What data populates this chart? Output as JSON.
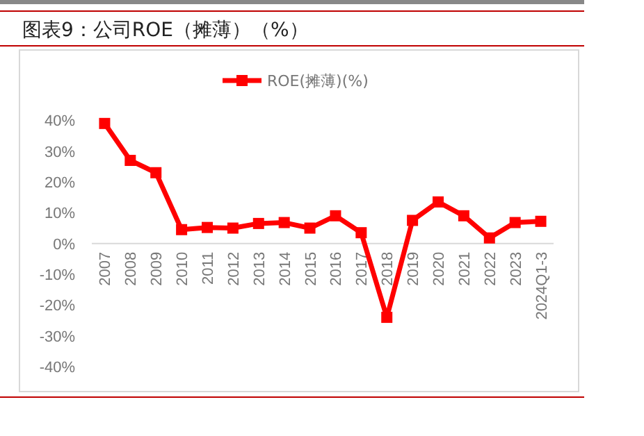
{
  "chart_data": {
    "type": "line",
    "title": "图表9：公司ROE（摊薄）（%）",
    "categories": [
      "2007",
      "2008",
      "2009",
      "2010",
      "2011",
      "2012",
      "2013",
      "2014",
      "2015",
      "2016",
      "2017",
      "2018",
      "2019",
      "2020",
      "2021",
      "2022",
      "2023",
      "2024Q1-3"
    ],
    "series": [
      {
        "name": "ROE(摊薄)(%)",
        "color": "#ff0000",
        "values": [
          39,
          27,
          23,
          4.5,
          5.2,
          5,
          6.5,
          6.8,
          5,
          9,
          3.5,
          -24,
          7.5,
          13.5,
          9,
          1.8,
          6.8,
          7.2
        ]
      }
    ],
    "ylim": [
      -40,
      40
    ],
    "yticks": [
      {
        "value": -40,
        "label": "-40%"
      },
      {
        "value": -30,
        "label": "-30%"
      },
      {
        "value": -20,
        "label": "-20%"
      },
      {
        "value": -10,
        "label": "-10%"
      },
      {
        "value": 0,
        "label": "0%"
      },
      {
        "value": 10,
        "label": "10%"
      },
      {
        "value": 20,
        "label": "20%"
      },
      {
        "value": 30,
        "label": "30%"
      },
      {
        "value": 40,
        "label": "40%"
      }
    ],
    "legend": "top",
    "marker": "square",
    "grid": false
  }
}
